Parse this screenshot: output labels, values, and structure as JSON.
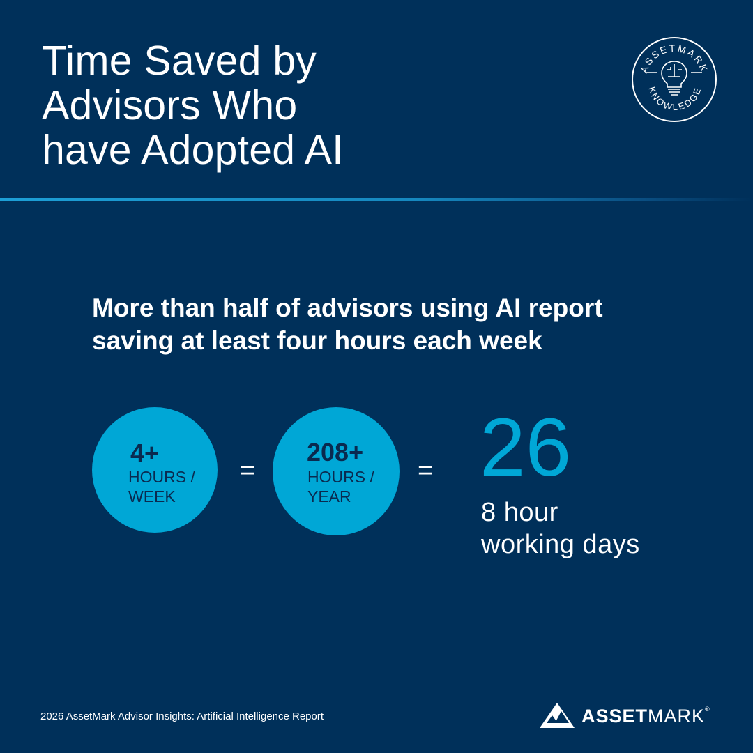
{
  "title": {
    "line1": "Time Saved by",
    "line2": "Advisors Who",
    "line3": "have Adopted AI"
  },
  "badge": {
    "top_text": "ASSETMARK",
    "bottom_text": "KNOWLEDGE"
  },
  "subtitle": {
    "line1": "More than half of advisors using AI report",
    "line2": "saving at least four hours each week"
  },
  "stats": {
    "weekly": {
      "value": "4+",
      "unit_line1": "HOURS /",
      "unit_line2": "WEEK"
    },
    "equals1": "=",
    "yearly": {
      "value": "208+",
      "unit_line1": "HOURS /",
      "unit_line2": "YEAR"
    },
    "equals2": "=",
    "days": {
      "value": "26",
      "line1": "8 hour",
      "line2": "working days"
    }
  },
  "footer": {
    "source": "2026 AssetMark Advisor Insights: Artificial Intelligence Report"
  },
  "logo": {
    "bold": "ASSET",
    "light": "MARK",
    "registered": "®"
  },
  "colors": {
    "background": "#00305a",
    "accent": "#00a7d6",
    "circle_text": "#0a2a4f",
    "text": "#ffffff"
  }
}
